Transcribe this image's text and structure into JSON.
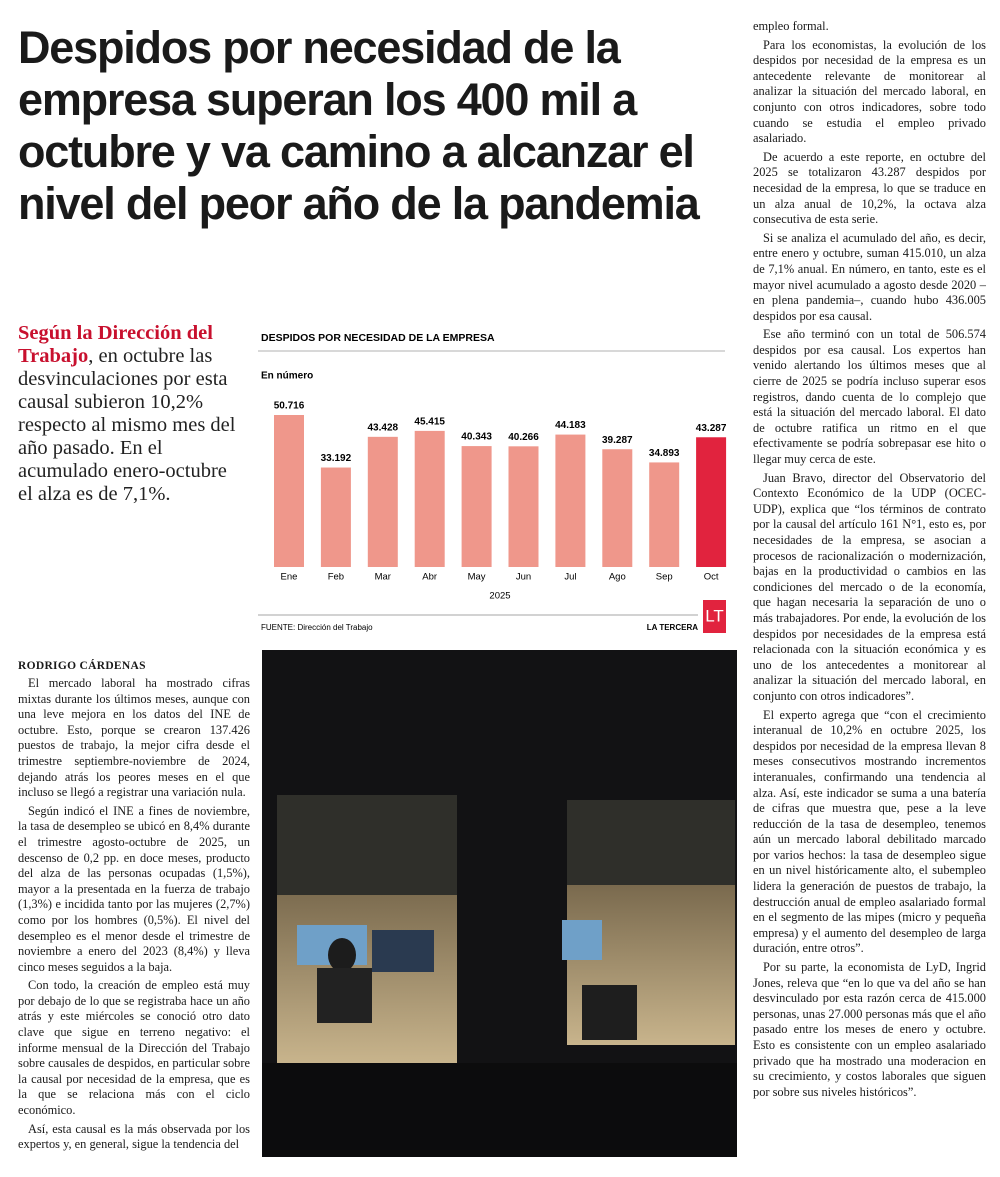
{
  "header": {
    "title": "Despidos por necesidad de la empresa superan los 400 mil a octubre y va camino a alcanzar el nivel del peor año de la pandemia"
  },
  "lead": {
    "highlight": "Según la Dirección del Trabajo",
    "text": ", en octubre las desvinculaciones por esta causal subieron 10,2% respecto al mismo mes del año pasado. En el acumulado enero-octubre el alza es de 7,1%."
  },
  "byline": "RODRIGO CÁRDENAS",
  "body": {
    "left": [
      "El mercado laboral ha mostrado cifras mixtas durante los últimos meses, aunque con una leve mejora en los datos del INE de octubre. Esto, porque se crearon 137.426 puestos de trabajo, la mejor cifra desde el trimestre septiembre-noviembre de 2024, dejando atrás los peores meses en el que incluso se llegó a registrar una variación nula.",
      "Según indicó el INE a fines de noviembre, la tasa de desempleo se ubicó en 8,4% durante el trimestre agosto-octubre de 2025, un descenso de 0,2 pp. en doce meses, producto del alza de las personas ocupadas (1,5%), mayor a la presentada en la fuerza de trabajo (1,3%) e incidida tanto por las mujeres (2,7%) como por los hombres (0,5%). El nivel del desempleo es el menor desde el trimestre de noviembre a enero del 2023 (8,4%) y lleva cinco meses seguidos a la baja.",
      "Con todo, la creación de empleo está muy por debajo de lo que se registraba hace un año atrás y este miércoles se conoció otro dato clave que sigue en terreno negativo: el informe mensual de la Dirección del Trabajo sobre causales de despidos, en particular sobre la causal por necesidad de la empresa, que es la que se relaciona más con el ciclo económico.",
      "Así, esta causal es la más observada por los expertos y, en general, sigue la tendencia del"
    ],
    "right": [
      "empleo formal.",
      "Para los economistas, la evolución de los despidos por necesidad de la empresa es un antecedente relevante de monitorear al analizar la situación del mercado laboral, en conjunto con otros indicadores, sobre todo cuando se estudia el empleo privado asalariado.",
      "De acuerdo a este reporte, en octubre del 2025 se totalizaron 43.287 despidos por necesidad de la empresa, lo que se traduce en un alza anual de 10,2%, la octava alza consecutiva de esta serie.",
      "Si se analiza el acumulado del año, es decir, entre enero y octubre, suman 415.010, un alza de 7,1% anual. En número, en tanto, este es el mayor nivel acumulado a agosto desde 2020 –en plena pandemia–, cuando hubo 436.005 despidos por esa causal.",
      "Ese año terminó con un total de 506.574 despidos por esa causal. Los expertos han venido alertando los últimos meses que al cierre de 2025 se podría incluso superar esos registros, dando cuenta de lo complejo que está la situación del mercado laboral. El dato de octubre ratifica un ritmo en el que efectivamente se podría sobrepasar ese hito o llegar muy cerca de este.",
      "Juan Bravo, director del Observatorio del Contexto Económico de la UDP (OCEC-UDP), explica que “los términos de contrato por la causal del artículo 161 N°1, esto es, por necesidades de la empresa, se asocian a procesos de racionalización o modernización, bajas en la productividad o cambios en las condiciones del mercado o de la economía, que hagan necesaria la separación de uno o más trabajadores. Por ende, la evolución de los despidos por necesidades de la empresa está relacionada con la situación económica y es uno de los antecedentes a monitorear al analizar la situación del mercado laboral, en conjunto con otros indicadores”.",
      "El experto agrega que “con el crecimiento interanual de 10,2% en octubre 2025, los despidos por necesidad de la empresa llevan 8 meses consecutivos mostrando incrementos interanuales, confirmando una tendencia al alza. Así, este indicador se suma a una batería de cifras que muestra que, pese a la leve reducción de la tasa de desempleo, tenemos aún un mercado laboral debilitado marcado por varios hechos: la tasa de desempleo sigue en un nivel históricamente alto, el subempleo lidera la generación de puestos de trabajo, la destrucción anual de empleo asalariado formal en el segmento de las mipes (micro y pequeña empresa) y el aumento del desempleo de larga duración, entre otros”.",
      "Por su parte, la economista de LyD, Ingrid Jones, releva que “en lo que va del año se han desvinculado por esta razón cerca de 415.000 personas, unas 27.000 personas más que el año pasado entre los meses de enero y octubre. Esto es consistente con un empleo asalariado privado que ha mostrado una moderacion en su crecimiento, y costos laborales que siguen por sobre sus niveles históricos”."
    ]
  },
  "chart_data": {
    "type": "bar",
    "title": "DESPIDOS POR NECESIDAD DE LA EMPRESA",
    "subtitle": "En número",
    "categories": [
      "Ene",
      "Feb",
      "Mar",
      "Abr",
      "May",
      "Jun",
      "Jul",
      "Ago",
      "Sep",
      "Oct"
    ],
    "values": [
      50716,
      33192,
      43428,
      45415,
      40343,
      40266,
      44183,
      39287,
      34893,
      43287
    ],
    "value_labels": [
      "50.716",
      "33.192",
      "43.428",
      "45.415",
      "40.343",
      "40.266",
      "44.183",
      "39.287",
      "34.893",
      "43.287"
    ],
    "colors": [
      "#ef978b",
      "#ef978b",
      "#ef978b",
      "#ef978b",
      "#ef978b",
      "#ef978b",
      "#ef978b",
      "#ef978b",
      "#ef978b",
      "#e1233e"
    ],
    "x_label": "2025",
    "source": "FUENTE: Dirección del Trabajo",
    "publisher": "LA TERCERA",
    "logo": "LT"
  }
}
